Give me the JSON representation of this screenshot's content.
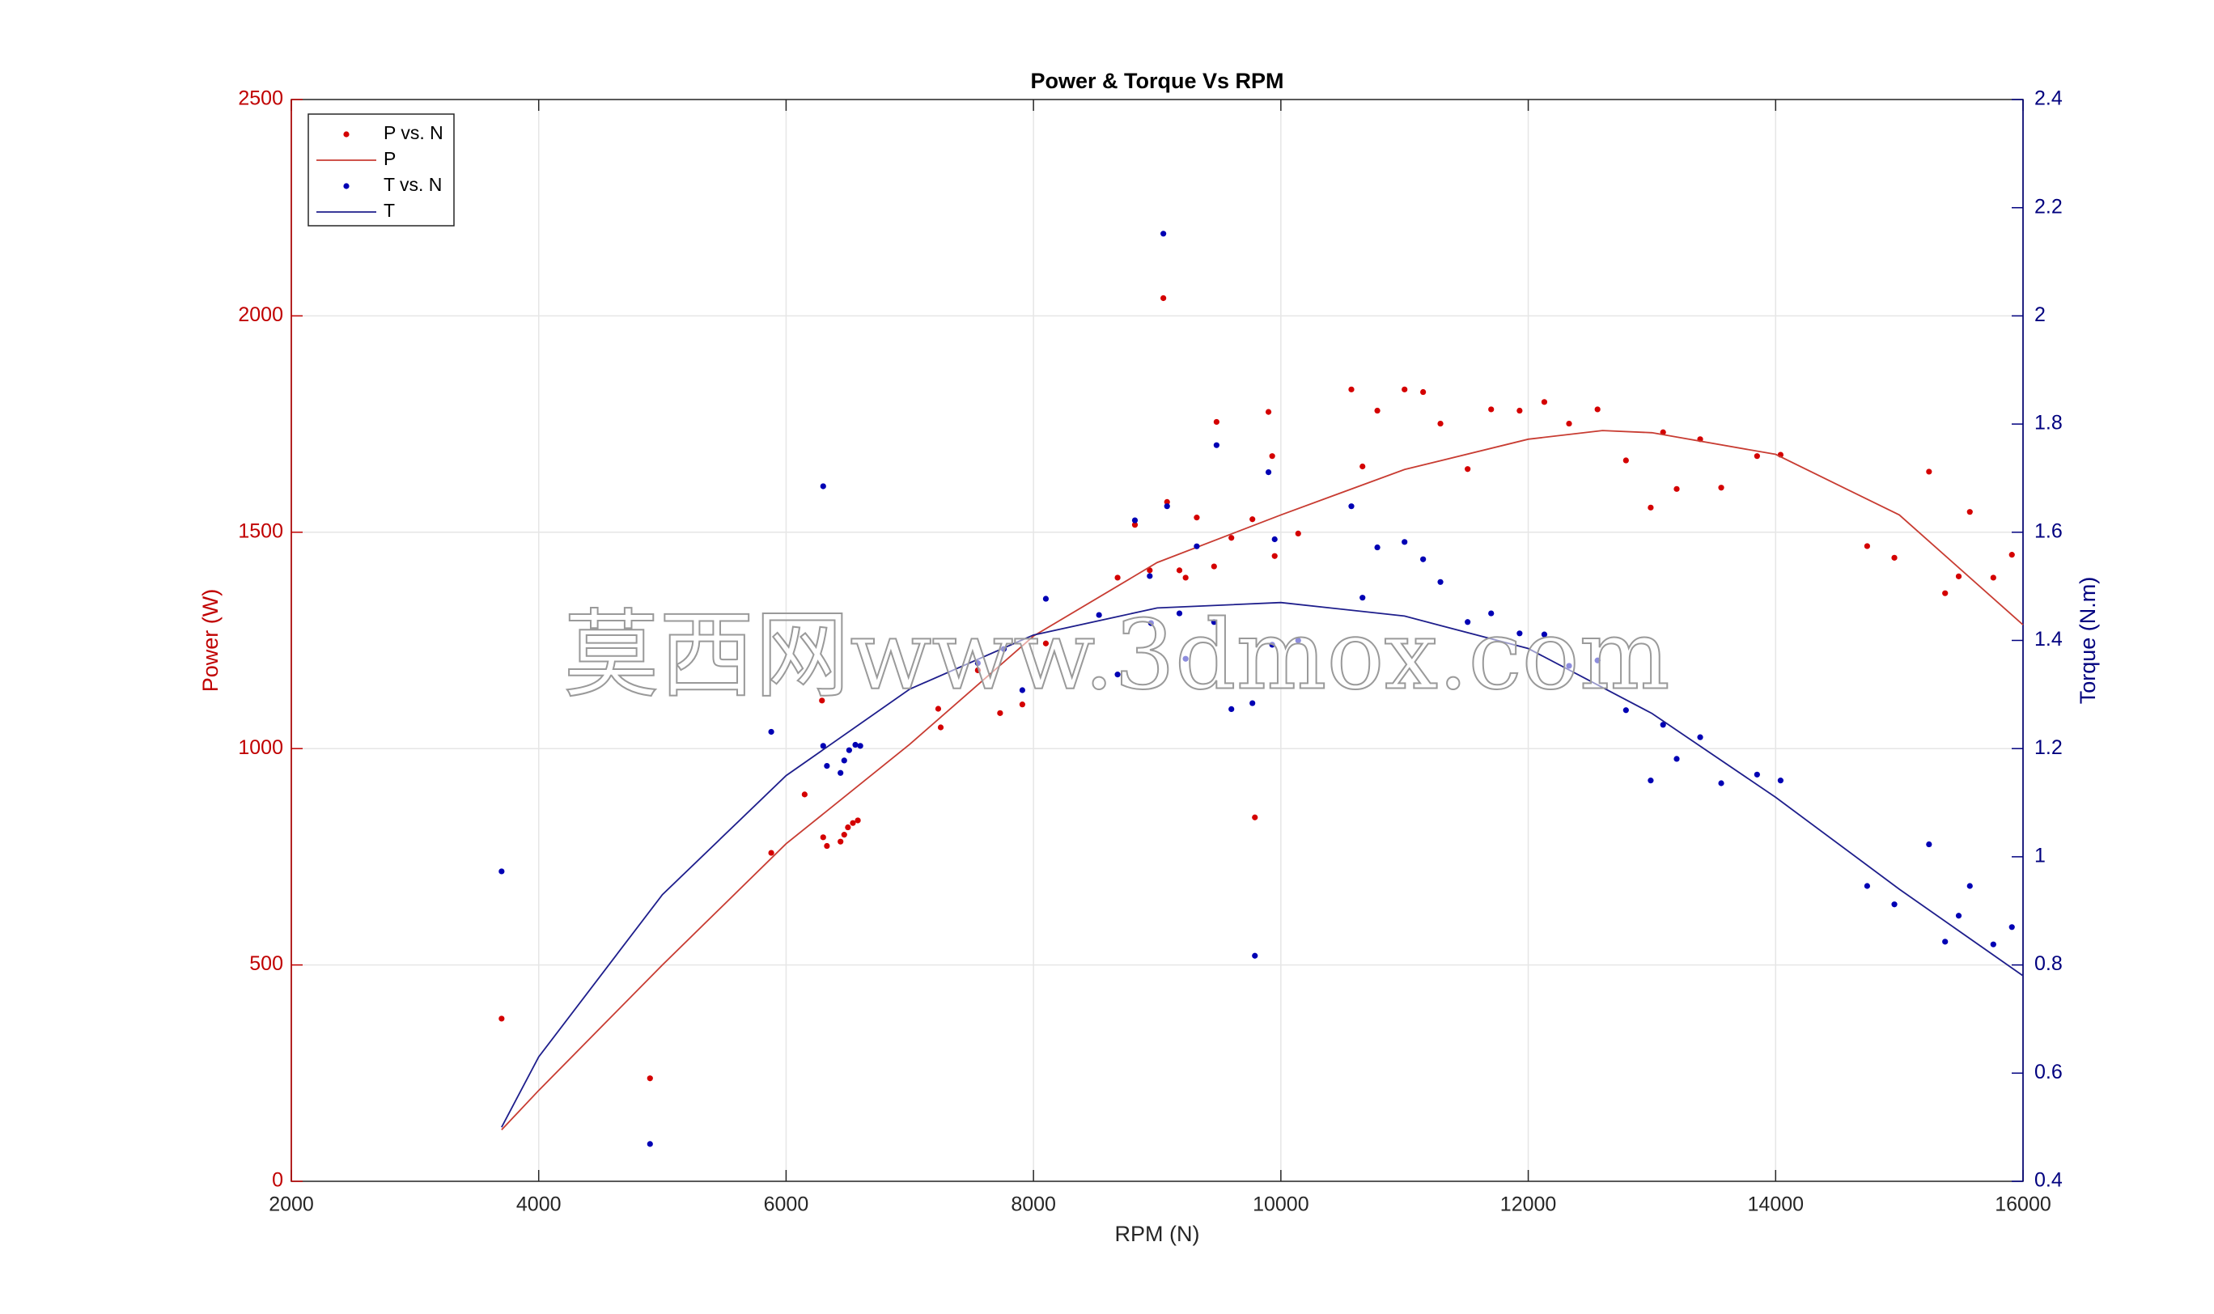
{
  "chart_data": {
    "type": "scatter",
    "title": "Power & Torque Vs RPM",
    "x_label": "RPM (N)",
    "y_label": "Power (W)",
    "y2_label": "Torque (N.m)",
    "watermark": "莫西网www.3dmox.com",
    "xlim": [
      2000,
      16000
    ],
    "xticks": [
      2000,
      4000,
      6000,
      8000,
      10000,
      12000,
      14000,
      16000
    ],
    "ylim": [
      0,
      2500
    ],
    "yticks": [
      0,
      500,
      1000,
      1500,
      2000,
      2500
    ],
    "y2lim": [
      0.4,
      2.4
    ],
    "y2ticks": [
      0.4,
      0.6,
      0.8,
      1,
      1.2,
      1.4,
      1.6,
      1.8,
      2,
      2.2,
      2.4
    ],
    "grid": true,
    "legend": "upper-left",
    "y_color": "#c00000",
    "y2_color": "#00007f",
    "series": [
      {
        "name": "P vs. N",
        "type": "scatter",
        "color": "#d40000",
        "x": [
          3700,
          4900,
          5880,
          6150,
          6290,
          6300,
          6330,
          6440,
          6470,
          6500,
          6540,
          6580,
          7230,
          7250,
          7550,
          7730,
          7910,
          8100,
          8680,
          8820,
          8940,
          9050,
          9080,
          9180,
          9230,
          9320,
          9460,
          9480,
          9600,
          9770,
          9790,
          9900,
          9930,
          9950,
          10140,
          10570,
          10660,
          10780,
          11000,
          11150,
          11290,
          11510,
          11700,
          11930,
          12130,
          12330,
          12560,
          12790,
          12990,
          13090,
          13200,
          13390,
          13560,
          13850,
          14040,
          14740,
          14960,
          15240,
          15370,
          15480,
          15570,
          15760,
          15910
        ],
        "values": [
          376,
          238,
          759,
          894,
          1111,
          795,
          775,
          785,
          801,
          818,
          828,
          834,
          1092,
          1049,
          1181,
          1082,
          1102,
          1243,
          1395,
          1517,
          1412,
          2041,
          1570,
          1412,
          1395,
          1534,
          1421,
          1755,
          1487,
          1530,
          841,
          1778,
          1676,
          1445,
          1497,
          1830,
          1652,
          1781,
          1830,
          1824,
          1751,
          1646,
          1784,
          1781,
          1801,
          1751,
          1784,
          1666,
          1557,
          1731,
          1600,
          1715,
          1603,
          1676,
          1679,
          1468,
          1441,
          1640,
          1359,
          1398,
          1547,
          1395,
          1448
        ]
      },
      {
        "name": "P",
        "type": "line",
        "color": "#c83c32",
        "x": [
          3700,
          4000,
          5000,
          6000,
          7000,
          8000,
          9000,
          10000,
          11000,
          12000,
          12600,
          13000,
          14000,
          15000,
          16000
        ],
        "values": [
          119,
          210,
          500,
          780,
          1010,
          1260,
          1430,
          1540,
          1645,
          1715,
          1735,
          1730,
          1680,
          1540,
          1286
        ]
      },
      {
        "name": "T vs. N",
        "type": "scatter",
        "color": "#0000b4",
        "axis": "y2",
        "x": [
          3700,
          4900,
          5880,
          6300,
          6300,
          6330,
          6440,
          6470,
          6510,
          6560,
          6600,
          7550,
          7760,
          7910,
          8100,
          8530,
          8680,
          8820,
          8940,
          8950,
          9050,
          9080,
          9180,
          9230,
          9320,
          9460,
          9480,
          9600,
          9770,
          9790,
          9900,
          9930,
          9950,
          10140,
          10570,
          10660,
          10780,
          11000,
          11150,
          11290,
          11510,
          11700,
          11930,
          12130,
          12330,
          12560,
          12790,
          12990,
          13090,
          13200,
          13390,
          13560,
          13850,
          14040,
          14740,
          14960,
          15240,
          15370,
          15480,
          15570,
          15760,
          15910
        ],
        "values": [
          0.973,
          0.469,
          1.231,
          1.685,
          1.205,
          1.168,
          1.155,
          1.178,
          1.197,
          1.207,
          1.205,
          1.358,
          1.384,
          1.308,
          1.477,
          1.447,
          1.337,
          1.622,
          1.519,
          1.432,
          2.152,
          1.648,
          1.45,
          1.366,
          1.574,
          1.434,
          1.761,
          1.273,
          1.284,
          0.817,
          1.711,
          1.392,
          1.587,
          1.4,
          1.648,
          1.479,
          1.572,
          1.582,
          1.55,
          1.508,
          1.434,
          1.45,
          1.413,
          1.411,
          1.353,
          1.363,
          1.271,
          1.141,
          1.244,
          1.181,
          1.221,
          1.136,
          1.152,
          1.141,
          0.946,
          0.912,
          1.023,
          0.843,
          0.891,
          0.946,
          0.838,
          0.87
        ]
      },
      {
        "name": "T",
        "type": "line",
        "color": "#1e1e8c",
        "axis": "y2",
        "x": [
          3700,
          4000,
          5000,
          6000,
          7000,
          8000,
          9000,
          10000,
          11000,
          12000,
          13000,
          14000,
          15000,
          16000
        ],
        "values": [
          0.5,
          0.63,
          0.93,
          1.15,
          1.31,
          1.41,
          1.46,
          1.47,
          1.445,
          1.385,
          1.265,
          1.11,
          0.94,
          0.78
        ]
      }
    ]
  }
}
